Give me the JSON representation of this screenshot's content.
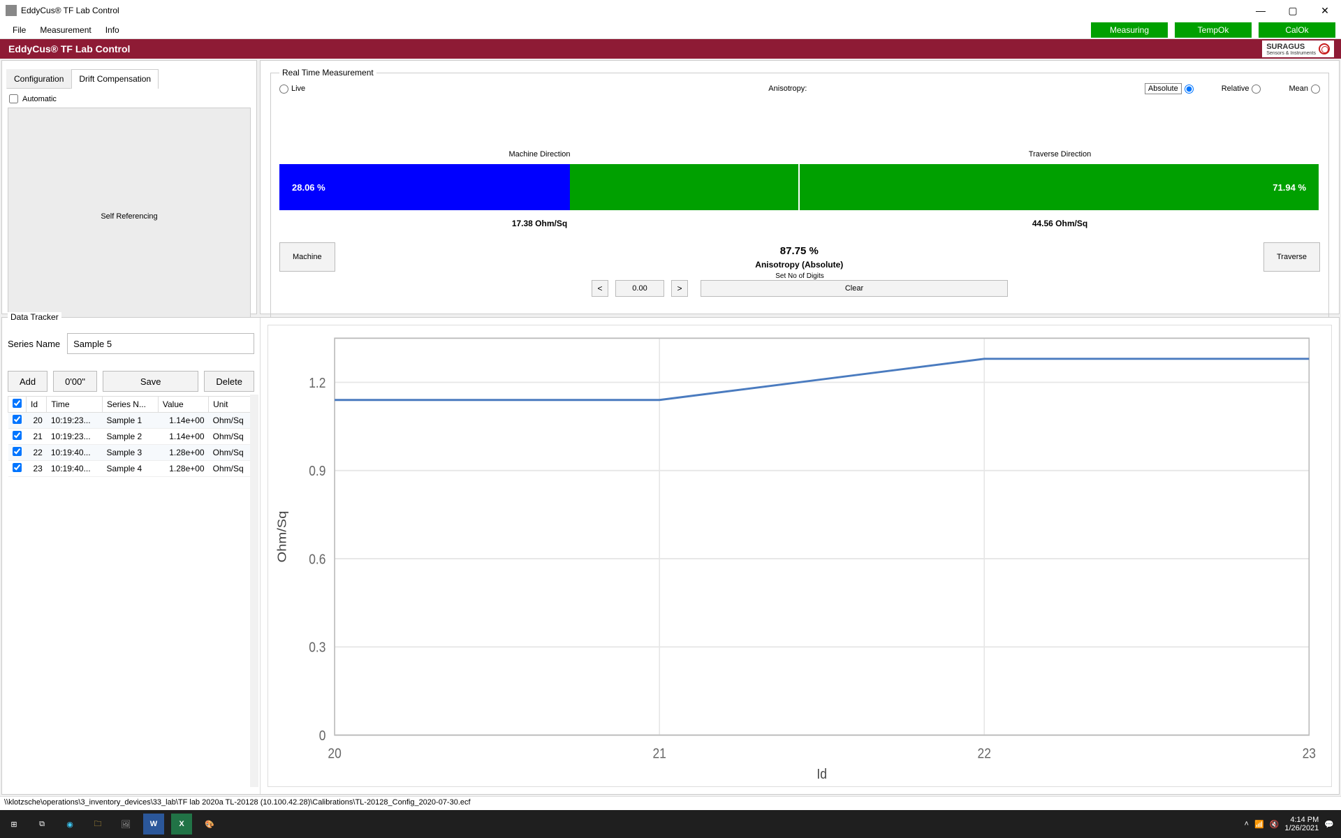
{
  "window": {
    "title": "EddyCus® TF Lab Control"
  },
  "menu": {
    "file": "File",
    "measurement": "Measurement",
    "info": "Info"
  },
  "status_pills": {
    "measuring": {
      "text": "Measuring",
      "color": "#00a000"
    },
    "tempok": {
      "text": "TempOk",
      "color": "#00a000"
    },
    "calok": {
      "text": "CalOk",
      "color": "#00a000"
    }
  },
  "brand": {
    "title": "EddyCus® TF Lab Control",
    "bar_bg": "#8e1b35",
    "logo_text": "SURAGUS",
    "logo_sub": "Sensors & Instruments"
  },
  "left_tabs": {
    "config": "Configuration",
    "drift": "Drift Compensation"
  },
  "automatic_label": "Automatic",
  "self_ref": "Self Referencing",
  "rtm": {
    "legend": "Real Time Measurement",
    "live": "Live",
    "aniso_label": "Anisotropy:",
    "absolute": "Absolute",
    "relative": "Relative",
    "mean": "Mean",
    "machine_dir": "Machine Direction",
    "traverse_dir": "Traverse Direction",
    "bar_left": {
      "pct_text": "28.06 %",
      "fill_pct": 56,
      "fill_color": "#0000ff",
      "track_color": "#00a000"
    },
    "bar_right": {
      "pct_text": "71.94 %",
      "fill_pct": 100,
      "fill_color": "#00a000"
    },
    "ohm_left": "17.38 Ohm/Sq",
    "ohm_right": "44.56 Ohm/Sq",
    "machine_btn": "Machine",
    "traverse_btn": "Traverse",
    "aniso_pct": "87.75 %",
    "aniso_abs": "Anisotropy (Absolute)",
    "digits_caption": "Set No of Digits",
    "digits_val": "0.00",
    "clear": "Clear"
  },
  "data_tracker": {
    "title": "Data Tracker",
    "series_label": "Series Name",
    "series_value": "Sample 5",
    "add": "Add",
    "timer": "0'00\"",
    "save": "Save",
    "delete": "Delete",
    "columns": {
      "id": "Id",
      "time": "Time",
      "series": "Series N...",
      "value": "Value",
      "unit": "Unit"
    },
    "rows": [
      {
        "id": "20",
        "time": "10:19:23...",
        "series": "Sample 1",
        "value": "1.14e+00",
        "unit": "Ohm/Sq"
      },
      {
        "id": "21",
        "time": "10:19:23...",
        "series": "Sample 2",
        "value": "1.14e+00",
        "unit": "Ohm/Sq"
      },
      {
        "id": "22",
        "time": "10:19:40...",
        "series": "Sample 3",
        "value": "1.28e+00",
        "unit": "Ohm/Sq"
      },
      {
        "id": "23",
        "time": "10:19:40...",
        "series": "Sample 4",
        "value": "1.28e+00",
        "unit": "Ohm/Sq"
      }
    ]
  },
  "chart": {
    "type": "line",
    "xlabel": "Id",
    "ylabel": "Ohm/Sq",
    "x": [
      20,
      21,
      22,
      23
    ],
    "y": [
      1.14,
      1.14,
      1.28,
      1.28
    ],
    "ylim": [
      0,
      1.35
    ],
    "yticks": [
      0,
      0.3,
      0.6,
      0.9,
      1.2
    ],
    "xticks": [
      20,
      21,
      22,
      23
    ],
    "line_color": "#4a7bbf",
    "grid_color": "#e6e6e6",
    "background": "#ffffff",
    "label_fontsize": 11
  },
  "statusline": "\\\\klotzsche\\operations\\3_inventory_devices\\33_lab\\TF lab 2020a TL-20128 (10.100.42.28)\\Calibrations\\TL-20128_Config_2020-07-30.ecf",
  "taskbar": {
    "time": "4:14 PM",
    "date": "1/26/2021"
  }
}
